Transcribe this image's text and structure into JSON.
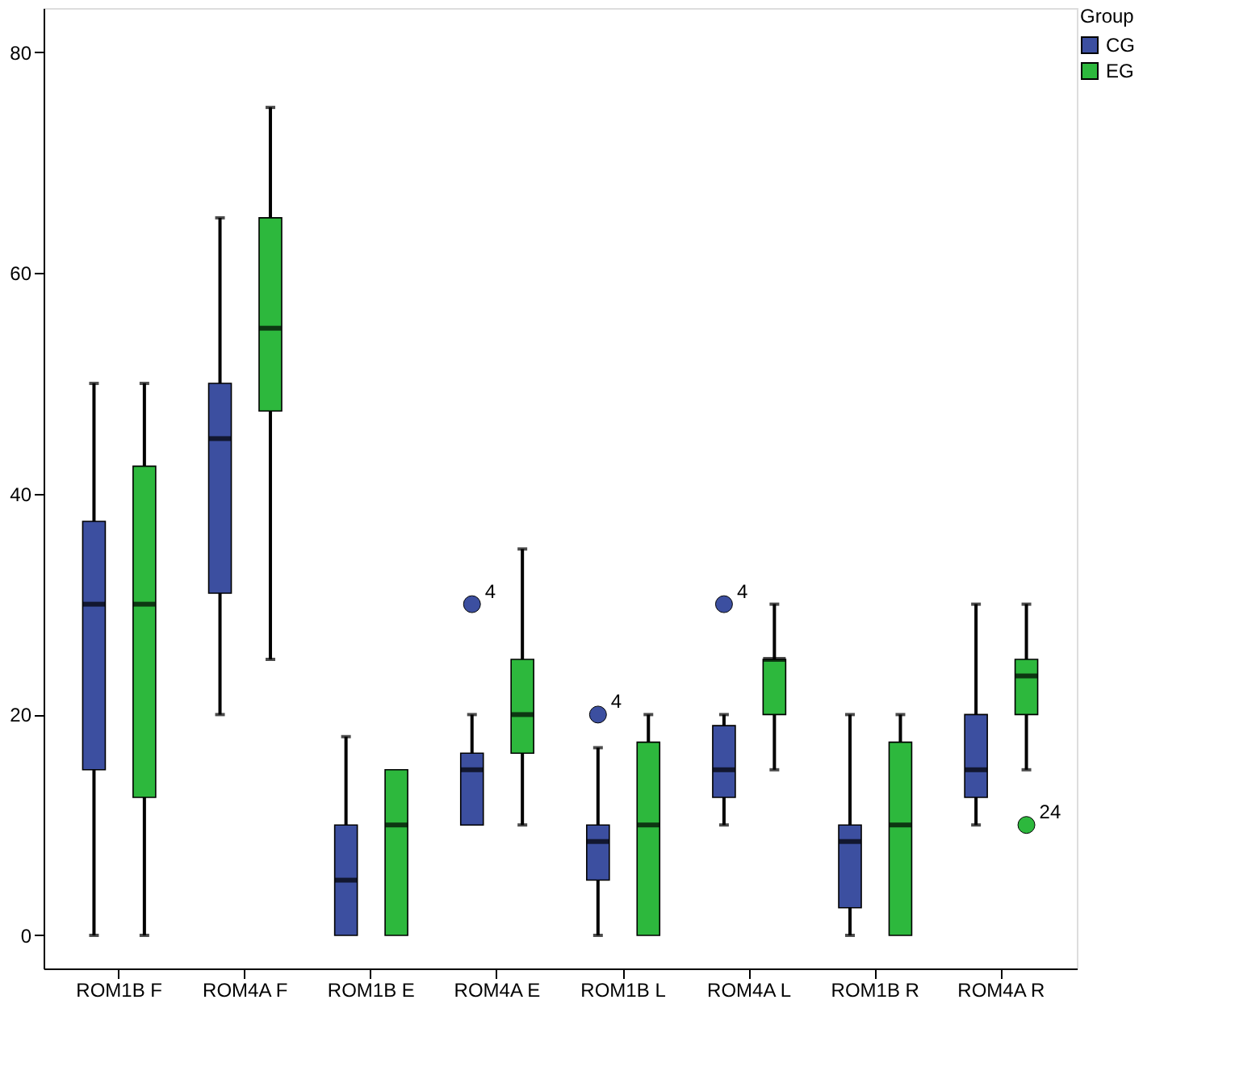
{
  "chart_data": {
    "type": "box",
    "legend_title": "Group",
    "legend": "top right",
    "grid": false,
    "categories": [
      "ROM1B F",
      "ROM4A F",
      "ROM1B E",
      "ROM4A E",
      "ROM1B L",
      "ROM4A L",
      "ROM1B R",
      "ROM4A R"
    ],
    "ylim": [
      -3,
      84
    ],
    "yticks": [
      0,
      20,
      40,
      60,
      80
    ],
    "series": [
      {
        "name": "CG",
        "color": "#3c4fa0",
        "boxes": [
          {
            "low": 0,
            "q1": 15,
            "median": 30,
            "q3": 37.5,
            "high": 50
          },
          {
            "low": 20,
            "q1": 31,
            "median": 45,
            "q3": 50,
            "high": 65
          },
          {
            "low": 0,
            "q1": 0,
            "median": 5,
            "q3": 10,
            "high": 18
          },
          {
            "low": 10,
            "q1": 10,
            "median": 15,
            "q3": 16.5,
            "high": 20,
            "outliers": [
              30
            ]
          },
          {
            "low": 0,
            "q1": 5,
            "median": 8.5,
            "q3": 10,
            "high": 17,
            "outliers": [
              20
            ]
          },
          {
            "low": 10,
            "q1": 12.5,
            "median": 15,
            "q3": 19,
            "high": 20,
            "outliers": [
              30
            ]
          },
          {
            "low": 0,
            "q1": 2.5,
            "median": 8.5,
            "q3": 10,
            "high": 20
          },
          {
            "low": 10,
            "q1": 12.5,
            "median": 15,
            "q3": 20,
            "high": 30
          }
        ]
      },
      {
        "name": "EG",
        "color": "#2db83d",
        "boxes": [
          {
            "low": 0,
            "q1": 12.5,
            "median": 30,
            "q3": 42.5,
            "high": 50
          },
          {
            "low": 25,
            "q1": 47.5,
            "median": 55,
            "q3": 65,
            "high": 75
          },
          {
            "low": 0,
            "q1": 0,
            "median": 10,
            "q3": 15,
            "high": 15
          },
          {
            "low": 10,
            "q1": 16.5,
            "median": 20,
            "q3": 25,
            "high": 35
          },
          {
            "low": 0,
            "q1": 0,
            "median": 10,
            "q3": 17.5,
            "high": 20
          },
          {
            "low": 15,
            "q1": 20,
            "median": 25,
            "q3": 25,
            "high": 30
          },
          {
            "low": 0,
            "q1": 0,
            "median": 10,
            "q3": 17.5,
            "high": 20
          },
          {
            "low": 15,
            "q1": 20,
            "median": 23.5,
            "q3": 25,
            "high": 30,
            "outliers": [
              10
            ]
          }
        ]
      }
    ],
    "annotations": [
      "4",
      "4",
      "4",
      "24"
    ]
  }
}
